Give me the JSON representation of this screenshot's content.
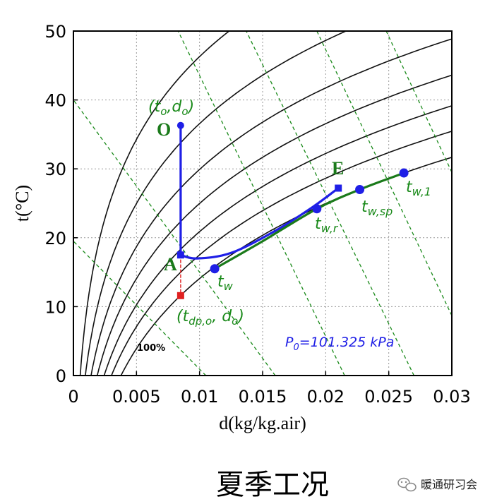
{
  "chart_data": {
    "type": "line",
    "title": "",
    "xlabel": "d(kg/kg.air)",
    "ylabel": "t(°C)",
    "xlim": [
      0,
      0.03
    ],
    "ylim": [
      0,
      50
    ],
    "x_ticks": [
      "0",
      "0.005",
      "0.01",
      "0.015",
      "0.02",
      "0.025",
      "0.03"
    ],
    "y_ticks": [
      "0",
      "10",
      "20",
      "30",
      "40",
      "50"
    ],
    "rh_label": "100%",
    "pressure_label": "P0=101.325 kPa",
    "rh_curve_k": [
      1.0,
      1.25,
      1.55,
      2.0,
      2.7,
      4.0,
      7.0
    ],
    "wetbulb_lines": [
      {
        "from": [
          0.0105,
          0
        ],
        "to": [
          0.0,
          19.5
        ]
      },
      {
        "from": [
          0.016,
          0
        ],
        "to": [
          0.0,
          40.0
        ]
      },
      {
        "from": [
          0.0215,
          0
        ],
        "to": [
          0.0083,
          50.0
        ]
      },
      {
        "from": [
          0.027,
          0
        ],
        "to": [
          0.0137,
          50.0
        ]
      },
      {
        "from": [
          0.03,
          8.7
        ],
        "to": [
          0.0193,
          50.0
        ]
      },
      {
        "from": [
          0.03,
          29.5
        ],
        "to": [
          0.0248,
          50.0
        ]
      }
    ],
    "series": [
      {
        "name": "outdoor-to-A",
        "color": "#1f1fe6",
        "points": [
          [
            0.0085,
            36.3
          ],
          [
            0.0085,
            17.5
          ]
        ]
      },
      {
        "name": "A-to-E",
        "color": "#1f1fe6",
        "points": [
          [
            0.0085,
            17.5
          ],
          [
            0.0098,
            17.0
          ],
          [
            0.0125,
            17.8
          ],
          [
            0.016,
            21.0
          ],
          [
            0.019,
            24.5
          ],
          [
            0.021,
            27.2
          ]
        ]
      },
      {
        "name": "water-temperature",
        "color": "#1a7a1a",
        "points": [
          [
            0.0112,
            15.5
          ],
          [
            0.015,
            19.5
          ],
          [
            0.0193,
            24.2
          ],
          [
            0.0227,
            27.0
          ],
          [
            0.0262,
            29.4
          ]
        ]
      },
      {
        "name": "dew-point-drop",
        "color": "#e02020",
        "points": [
          [
            0.0085,
            17.5
          ],
          [
            0.0085,
            11.6
          ]
        ]
      }
    ],
    "markers": [
      {
        "label": "O",
        "x": 0.0085,
        "y": 36.3,
        "color": "#1f1fe6",
        "shape": "circle"
      },
      {
        "label": "A",
        "x": 0.0085,
        "y": 17.5,
        "color": "#1f1fe6",
        "shape": "square"
      },
      {
        "label": "E",
        "x": 0.021,
        "y": 27.2,
        "color": "#1f1fe6",
        "shape": "square"
      },
      {
        "label": "t_w",
        "x": 0.0112,
        "y": 15.5,
        "color": "#1f1fe6",
        "shape": "circle"
      },
      {
        "label": "t_w,r",
        "x": 0.0193,
        "y": 24.2,
        "color": "#1f1fe6",
        "shape": "circle"
      },
      {
        "label": "t_w,sp",
        "x": 0.0227,
        "y": 27.0,
        "color": "#1f1fe6",
        "shape": "circle"
      },
      {
        "label": "t_w,1",
        "x": 0.0262,
        "y": 29.4,
        "color": "#1f1fe6",
        "shape": "circle"
      },
      {
        "label": "t_dp,o",
        "x": 0.0085,
        "y": 11.6,
        "color": "#e02020",
        "shape": "square"
      }
    ]
  },
  "labels": {
    "to_open": "(t",
    "to_sub": "o",
    "to_mid": ",d",
    "to_sub2": "o",
    "to_close": ")",
    "O": "O",
    "A": "A",
    "E": "E",
    "tw": "t",
    "tw_sub": "w",
    "twr": "t",
    "twr_sub": "w,r",
    "twsp": "t",
    "twsp_sub": "w,sp",
    "tw1": "t",
    "tw1_sub": "w,1",
    "tdp_open": "(t",
    "tdp_sub": "dp,o",
    "tdp_mid": ", d",
    "tdp_sub2": "o",
    "tdp_close": ")",
    "p0": "P",
    "p0_sub": "0",
    "p0_rest": "=101.325 kPa"
  },
  "caption": "夏季工况",
  "watermark": "暖通研习会"
}
